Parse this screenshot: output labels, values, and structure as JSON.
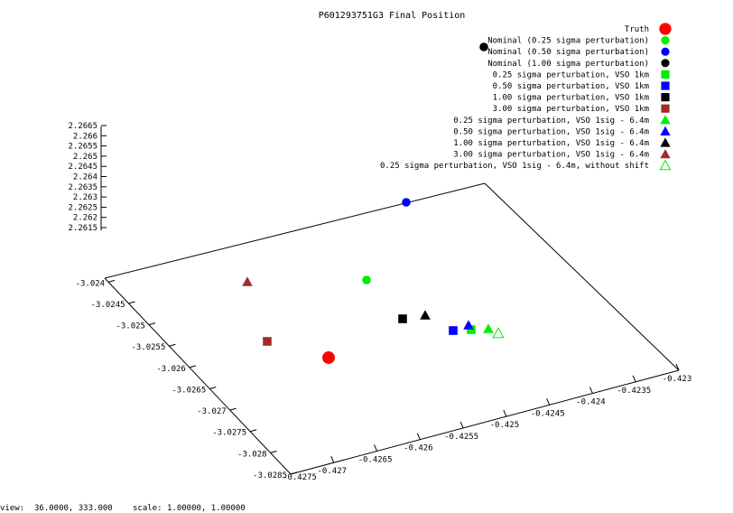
{
  "chart_data": {
    "type": "scatter",
    "title": "P601293751G3 Final Position",
    "xlabel": "",
    "ylabel": "",
    "zlabel": "",
    "x_axis_ticks": [
      "-0.427",
      "-0.4265",
      "-0.426",
      "-0.4255",
      "-0.425",
      "-0.4245",
      "-0.424",
      "-0.4235",
      "-0.423"
    ],
    "x_axis_end_label": "-0.4275",
    "y_axis_ticks": [
      "-3.0285",
      "-3.028",
      "-3.0275",
      "-3.027",
      "-3.0265",
      "-3.026",
      "-3.0255",
      "-3.025",
      "-3.0245",
      "-3.024"
    ],
    "z_axis_ticks": [
      "2.2615",
      "2.262",
      "2.2625",
      "2.263",
      "2.2635",
      "2.264",
      "2.2645",
      "2.265",
      "2.2655",
      "2.266",
      "2.2665"
    ],
    "legend_position": "top-right",
    "series": [
      {
        "name": "Truth",
        "marker": "circle-filled-large",
        "color": "#ff0000"
      },
      {
        "name": "Nominal (0.25 sigma perturbation)",
        "marker": "circle-filled",
        "color": "#00ee00"
      },
      {
        "name": "Nominal (0.50 sigma perturbation)",
        "marker": "circle-filled",
        "color": "#0000ff"
      },
      {
        "name": "Nominal (1.00 sigma perturbation)",
        "marker": "circle-filled",
        "color": "#000000"
      },
      {
        "name": "0.25 sigma perturbation, VSO 1km",
        "marker": "square-filled",
        "color": "#00ee00"
      },
      {
        "name": "0.50 sigma perturbation, VSO 1km",
        "marker": "square-filled",
        "color": "#0000ff"
      },
      {
        "name": "1.00 sigma perturbation, VSO 1km",
        "marker": "square-filled",
        "color": "#000000"
      },
      {
        "name": "3.00 sigma perturbation, VSO 1km",
        "marker": "square-filled",
        "color": "#a52a2a"
      },
      {
        "name": "0.25 sigma perturbation, VSO 1sig - 6.4m",
        "marker": "triangle-filled",
        "color": "#00ee00"
      },
      {
        "name": "0.50 sigma perturbation, VSO 1sig - 6.4m",
        "marker": "triangle-filled",
        "color": "#0000ff"
      },
      {
        "name": "1.00 sigma perturbation, VSO 1sig - 6.4m",
        "marker": "triangle-filled",
        "color": "#000000"
      },
      {
        "name": "3.00 sigma perturbation, VSO 1sig - 6.4m",
        "marker": "triangle-filled",
        "color": "#a52a2a"
      },
      {
        "name": "0.25 sigma perturbation, VSO 1sig - 6.4m, without shift",
        "marker": "triangle-open",
        "color": "#00ee00"
      }
    ],
    "grid": false,
    "view": "3d-perspective"
  },
  "status": {
    "view_label": "view:",
    "view_values": "36.0000,  333.000",
    "scale_label": "scale:",
    "scale_values": "1.00000,  1.00000"
  }
}
